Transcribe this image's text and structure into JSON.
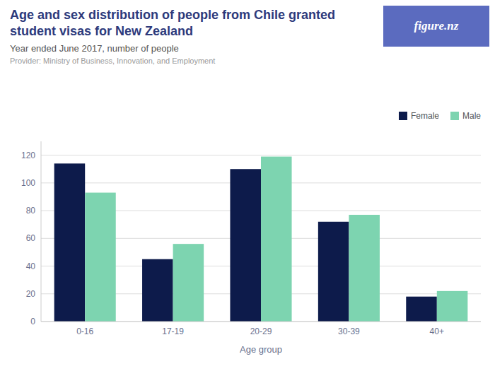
{
  "chart_data": {
    "type": "bar",
    "title": "Age and sex distribution of people from Chile granted student visas for New Zealand",
    "subtitle": "Year ended June 2017, number of people",
    "annotations": [
      "Provider: Ministry of Business, Innovation, and Employment",
      "figure.nz"
    ],
    "x_label": "Age group",
    "categories": [
      "0-16",
      "17-19",
      "20-29",
      "30-39",
      "40+"
    ],
    "series": [
      {
        "name": "Female",
        "color": "#0d1b4b",
        "values": [
          114,
          45,
          110,
          72,
          18
        ]
      },
      {
        "name": "Male",
        "color": "#7dd4b0",
        "values": [
          93,
          56,
          119,
          77,
          22
        ]
      }
    ],
    "ylim": [
      0,
      130
    ],
    "yticks": [
      0,
      20,
      40,
      60,
      80,
      100,
      120
    ],
    "grid": true,
    "legend": "upper right"
  }
}
